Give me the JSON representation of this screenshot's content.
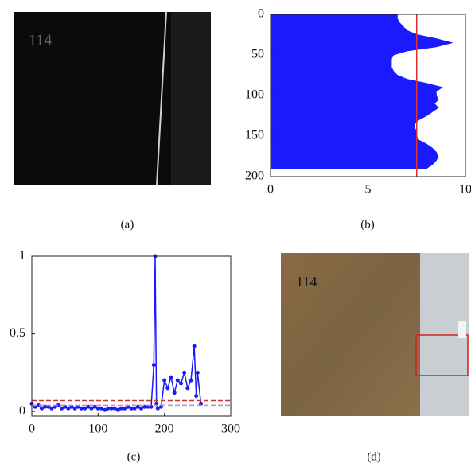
{
  "panels": [
    {
      "caption": "(a)",
      "image_text": "114"
    },
    {
      "caption": "(b)"
    },
    {
      "caption": "(c)"
    },
    {
      "caption": "(d)",
      "image_text": "114"
    }
  ],
  "chart_data": [
    {
      "type": "harea",
      "color": "#1a1aff",
      "y": [
        0,
        5,
        10,
        15,
        20,
        25,
        30,
        35,
        40,
        45,
        50,
        55,
        60,
        65,
        70,
        75,
        80,
        85,
        90,
        95,
        100,
        105,
        110,
        115,
        120,
        125,
        130,
        135,
        140,
        145,
        150,
        155,
        160,
        165,
        170,
        175,
        180,
        185,
        190
      ],
      "values": [
        6.5,
        6.5,
        6.6,
        6.8,
        7.0,
        7.5,
        8.5,
        9.3,
        8.5,
        7.0,
        6.3,
        6.2,
        6.2,
        6.2,
        6.3,
        6.5,
        7.0,
        8.0,
        8.8,
        8.5,
        8.5,
        8.6,
        8.4,
        8.6,
        8.3,
        8.0,
        7.6,
        7.4,
        7.4,
        7.5,
        7.5,
        7.6,
        8.0,
        8.3,
        8.5,
        8.6,
        8.5,
        8.3,
        8.0
      ],
      "xlim": [
        0,
        10
      ],
      "xticks": [
        0,
        5,
        10
      ],
      "ylim": [
        0,
        200
      ],
      "yticks": [
        0,
        50,
        100,
        150,
        200
      ],
      "y_inverted": true,
      "ref_lines": [
        {
          "axis": "x",
          "value": 7.5,
          "color": "#e03030"
        }
      ]
    },
    {
      "type": "line",
      "color": "#1a1aff",
      "x": [
        0,
        5,
        10,
        15,
        20,
        25,
        30,
        35,
        40,
        45,
        50,
        55,
        60,
        65,
        70,
        75,
        80,
        85,
        90,
        95,
        100,
        105,
        110,
        115,
        120,
        125,
        130,
        135,
        140,
        145,
        150,
        155,
        160,
        165,
        170,
        175,
        180,
        184,
        186,
        188,
        190,
        195,
        200,
        205,
        210,
        215,
        220,
        225,
        230,
        235,
        240,
        245,
        248,
        250,
        255
      ],
      "values": [
        0.05,
        0.03,
        0.04,
        0.02,
        0.03,
        0.03,
        0.02,
        0.03,
        0.04,
        0.02,
        0.03,
        0.02,
        0.03,
        0.02,
        0.03,
        0.02,
        0.02,
        0.03,
        0.02,
        0.03,
        0.02,
        0.02,
        0.01,
        0.02,
        0.02,
        0.02,
        0.01,
        0.02,
        0.02,
        0.03,
        0.02,
        0.02,
        0.03,
        0.02,
        0.03,
        0.03,
        0.03,
        0.3,
        1.0,
        0.05,
        0.02,
        0.03,
        0.2,
        0.15,
        0.22,
        0.12,
        0.2,
        0.18,
        0.25,
        0.15,
        0.2,
        0.42,
        0.1,
        0.25,
        0.05
      ],
      "xlim": [
        0,
        300
      ],
      "xticks": [
        0,
        100,
        200,
        300
      ],
      "ylim": [
        -0.03,
        1
      ],
      "yticks": [
        0,
        0.5,
        1
      ],
      "ref_lines": [
        {
          "axis": "y",
          "value": 0.07,
          "color": "#c0392b",
          "dash": true
        },
        {
          "axis": "y",
          "value": 0.04,
          "color": "#e080c0",
          "dash": true
        }
      ]
    }
  ]
}
